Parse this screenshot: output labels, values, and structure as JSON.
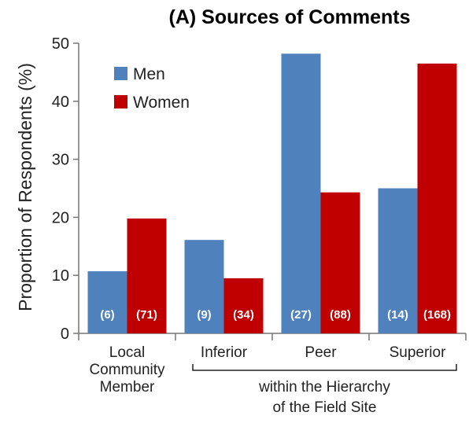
{
  "chart_data": {
    "type": "bar",
    "title": "(A) Sources of Comments",
    "ylabel": "Proportion of Respondents (%)",
    "xlabel": "",
    "ylim": [
      0,
      50
    ],
    "yticks": [
      0,
      10,
      20,
      30,
      40,
      50
    ],
    "categories": [
      [
        "Local",
        "Community",
        "Member"
      ],
      [
        "Inferior"
      ],
      [
        "Peer"
      ],
      [
        "Superior"
      ]
    ],
    "series": [
      {
        "name": "Men",
        "color": "#4f81bd",
        "values": [
          10.7,
          16.1,
          48.2,
          25.0
        ],
        "counts": [
          "(6)",
          "(9)",
          "(27)",
          "(14)"
        ]
      },
      {
        "name": "Women",
        "color": "#c00000",
        "values": [
          19.8,
          9.5,
          24.3,
          46.5
        ],
        "counts": [
          "(71)",
          "(34)",
          "(88)",
          "(168)"
        ]
      }
    ],
    "legend_position": "top-left",
    "bracket_label": [
      "within the Hierarchy",
      "of the Field Site"
    ]
  }
}
